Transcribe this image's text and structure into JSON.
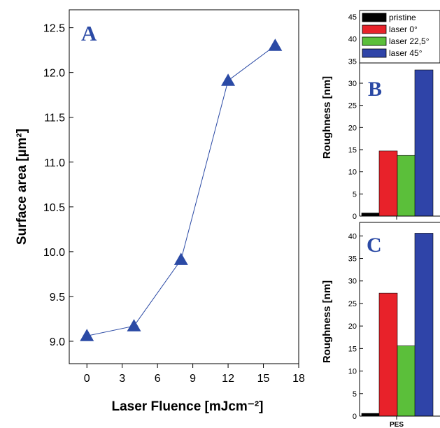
{
  "chart_data": [
    {
      "type": "line",
      "panel_label": "A",
      "x": [
        0,
        4,
        8,
        12,
        16
      ],
      "values": [
        9.06,
        9.17,
        9.91,
        11.91,
        12.3
      ],
      "xlabel": "Laser Fluence [mJcm⁻²]",
      "ylabel": "Surface area [µm²]",
      "xlim": [
        -1.5,
        18
      ],
      "ylim": [
        8.75,
        12.7
      ],
      "xticks": [
        "0",
        "3",
        "6",
        "9",
        "12",
        "15",
        "18"
      ],
      "yticks": [
        "9.0",
        "9.5",
        "10.0",
        "10.5",
        "11.0",
        "11.5",
        "12.0",
        "12.5"
      ],
      "marker": "triangle",
      "color": "#2b4aa5",
      "grid": false
    },
    {
      "type": "bar",
      "panel_label": "B",
      "ylabel": "Roughness [nm]",
      "ylim": [
        0,
        45
      ],
      "yticks": [
        "0",
        "5",
        "10",
        "15",
        "20",
        "25",
        "30",
        "35",
        "40",
        "45"
      ],
      "series": [
        {
          "name": "pristine",
          "values": [
            0.7
          ],
          "color": "#000000"
        },
        {
          "name": "laser 0°",
          "values": [
            14.7
          ],
          "color": "#e8222a"
        },
        {
          "name": "laser 22,5°",
          "values": [
            13.7
          ],
          "color": "#5bbf3a"
        },
        {
          "name": "laser 45°",
          "values": [
            33.0
          ],
          "color": "#2f44a8"
        }
      ],
      "legend": "top",
      "grid": false
    },
    {
      "type": "bar",
      "panel_label": "C",
      "ylabel": "Roughness [nm]",
      "ylim": [
        0,
        43
      ],
      "yticks": [
        "0",
        "5",
        "10",
        "15",
        "20",
        "25",
        "30",
        "35",
        "40"
      ],
      "categories": [
        "PES"
      ],
      "series": [
        {
          "name": "pristine",
          "values": [
            0.6
          ],
          "color": "#000000"
        },
        {
          "name": "laser 0°",
          "values": [
            27.3
          ],
          "color": "#e8222a"
        },
        {
          "name": "laser 22,5°",
          "values": [
            15.6
          ],
          "color": "#5bbf3a"
        },
        {
          "name": "laser 45°",
          "values": [
            40.6
          ],
          "color": "#2f44a8"
        }
      ],
      "grid": false
    }
  ]
}
